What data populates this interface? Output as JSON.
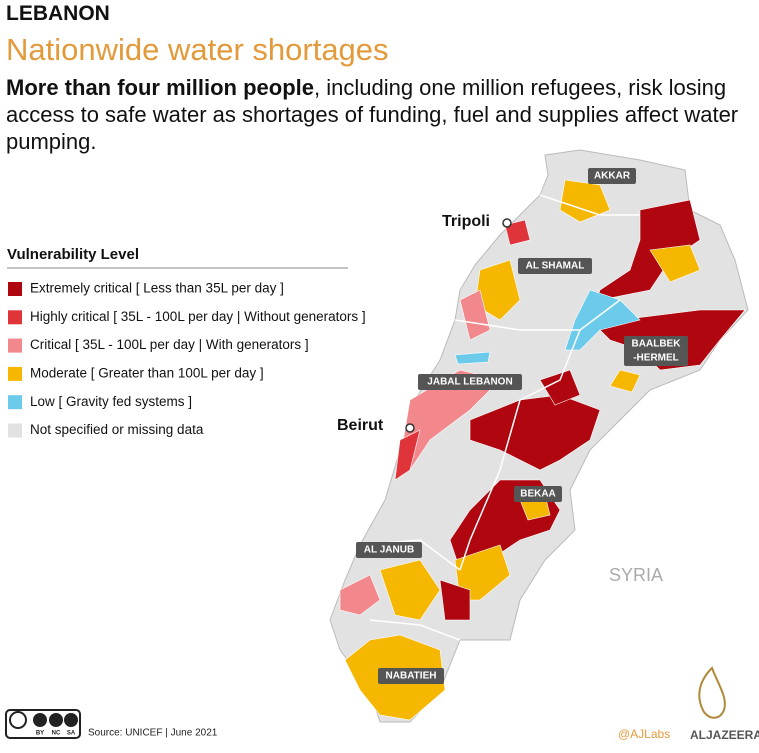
{
  "header": {
    "country": "LEBANON",
    "title": "Nationwide water shortages",
    "subtitle_bold": "More than four million people",
    "subtitle_rest": ", including one million refugees, risk losing access to safe water as shortages of funding, fuel and supplies affect water pumping."
  },
  "legend": {
    "title": "Vulnerability Level",
    "items": [
      {
        "label": "Extremely critical [ Less than 35L per day ]",
        "color": "#b0060f"
      },
      {
        "label": "Highly critical [ 35L - 100L per day | Without generators ]",
        "color": "#e0343b"
      },
      {
        "label": "Critical [ 35L - 100L per day | With generators ]",
        "color": "#f2878c"
      },
      {
        "label": "Moderate [ Greater than 100L per day ]",
        "color": "#f5b700"
      },
      {
        "label": "Low [ Gravity fed systems ]",
        "color": "#6ccbea"
      },
      {
        "label": "Not specified or missing data",
        "color": "#e2e2e2"
      }
    ]
  },
  "map": {
    "cities": [
      "Tripoli",
      "Beirut"
    ],
    "regions": [
      "AKKAR",
      "AL SHAMAL",
      "BAALBEK",
      "-HERMEL",
      "JABAL LEBANON",
      "BEKAA",
      "AL JANUB",
      "NABATIEH"
    ],
    "neighbor": "SYRIA"
  },
  "footer": {
    "license": [
      "BY",
      "NC",
      "SA"
    ],
    "source": "Source: UNICEF | June 2021",
    "handle": "@AJLabs",
    "brand": "ALJAZEERA"
  }
}
